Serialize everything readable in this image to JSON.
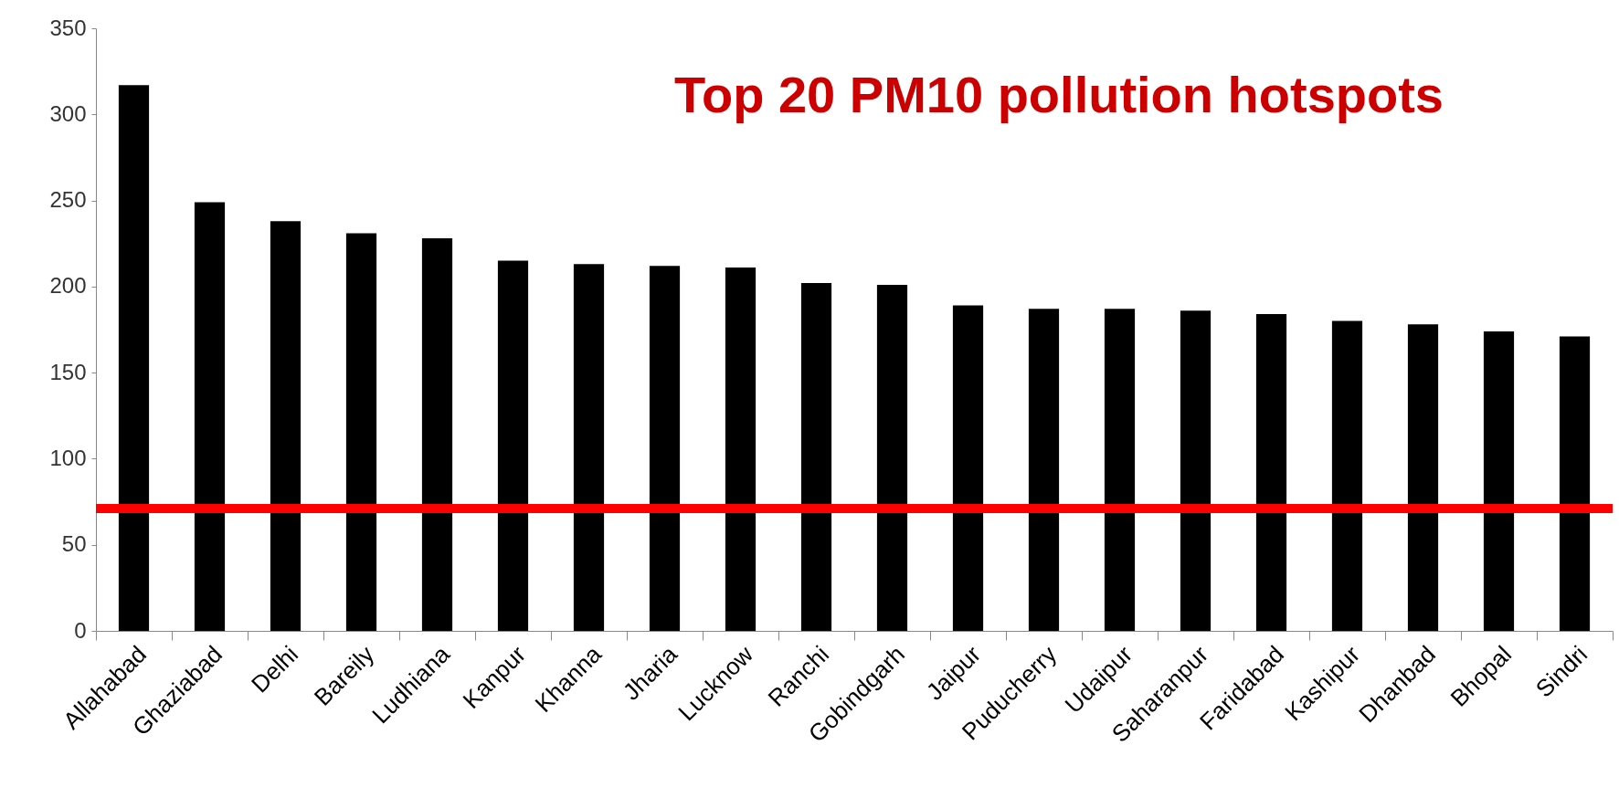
{
  "chart_data": {
    "type": "bar",
    "title": "Top 20 PM10 pollution hotspots",
    "categories": [
      "Allahabad",
      "Ghaziabad",
      "Delhi",
      "Bareily",
      "Ludhiana",
      "Kanpur",
      "Khanna",
      "Jharia",
      "Lucknow",
      "Ranchi",
      "Gobindgarh",
      "Jaipur",
      "Puducherry",
      "Udaipur",
      "Saharanpur",
      "Faridabad",
      "Kashipur",
      "Dhanbad",
      "Bhopal",
      "Sindri"
    ],
    "values": [
      317,
      249,
      238,
      231,
      228,
      215,
      213,
      212,
      211,
      202,
      201,
      189,
      187,
      187,
      186,
      184,
      180,
      178,
      174,
      171
    ],
    "color": "#000000",
    "ylim": [
      0,
      350
    ],
    "yticks": [
      0,
      50,
      100,
      150,
      200,
      250,
      300,
      350
    ],
    "ref_lines": [
      {
        "axis": "y",
        "value": 71,
        "color": "#ff0000"
      }
    ],
    "grid": false
  }
}
